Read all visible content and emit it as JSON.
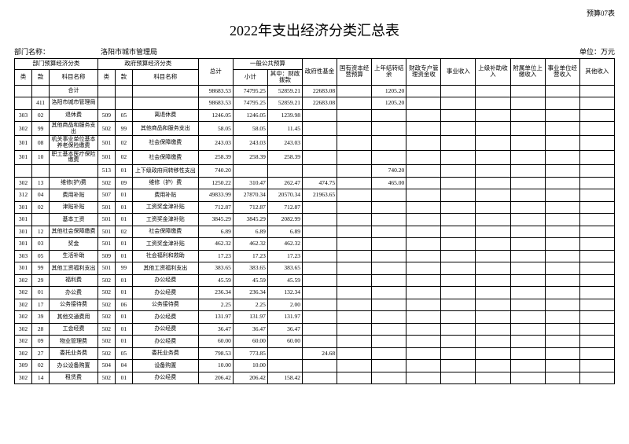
{
  "topLabel": "预算07表",
  "title": "2022年支出经济分类汇总表",
  "meta": {
    "deptLabel": "部门名称：",
    "deptName": "洛阳市城市管理局",
    "unit": "单位：万元"
  },
  "header": {
    "g1": "部门预算经济分类",
    "g2": "政府预算经济分类",
    "total": "总计",
    "pub": "一般公共预算",
    "pubSub": "小计",
    "pubFiscal": "其中：财政拨款",
    "govFund": "政府性基金",
    "stateCap": "国有资本经营预算",
    "prevBal": "上年结转结余",
    "fiscalAcct": "财政专户管理资金收",
    "bizIncome": "事业收入",
    "superSub": "上级补助收入",
    "subord": "附属单位上缴收入",
    "bizOp": "事业单位经营收入",
    "other": "其他收入",
    "lei": "类",
    "kuan": "款",
    "kemu": "科目名称"
  },
  "rows": [
    {
      "l": "",
      "k": "",
      "n": "合计",
      "l2": "",
      "k2": "",
      "n2": "",
      "v": [
        "98683.53",
        "74795.25",
        "52859.21",
        "22683.08",
        "",
        "1205.20",
        "",
        "",
        "",
        "",
        "",
        ""
      ]
    },
    {
      "l": "",
      "k": "411",
      "n": "洛阳市城市管理局",
      "l2": "",
      "k2": "",
      "n2": "",
      "v": [
        "98683.53",
        "74795.25",
        "52859.21",
        "22683.08",
        "",
        "1205.20",
        "",
        "",
        "",
        "",
        "",
        ""
      ]
    },
    {
      "l": "303",
      "k": "02",
      "n": "退休费",
      "l2": "509",
      "k2": "05",
      "n2": "离退休费",
      "v": [
        "1246.05",
        "1246.05",
        "1239.98",
        "",
        "",
        "",
        "",
        "",
        "",
        "",
        "",
        ""
      ]
    },
    {
      "l": "302",
      "k": "99",
      "n": "其他商品和服务支出",
      "l2": "502",
      "k2": "99",
      "n2": "其他商品和服务支出",
      "v": [
        "58.05",
        "58.05",
        "11.45",
        "",
        "",
        "",
        "",
        "",
        "",
        "",
        "",
        ""
      ]
    },
    {
      "l": "301",
      "k": "08",
      "n": "机关事业单位基本养老保险缴费",
      "l2": "501",
      "k2": "02",
      "n2": "社会保障缴费",
      "v": [
        "243.03",
        "243.03",
        "243.03",
        "",
        "",
        "",
        "",
        "",
        "",
        "",
        "",
        ""
      ]
    },
    {
      "l": "301",
      "k": "10",
      "n": "职工基本医疗保险缴费",
      "l2": "501",
      "k2": "02",
      "n2": "社会保障缴费",
      "v": [
        "258.39",
        "258.39",
        "258.39",
        "",
        "",
        "",
        "",
        "",
        "",
        "",
        "",
        ""
      ]
    },
    {
      "l": "",
      "k": "",
      "n": "",
      "l2": "513",
      "k2": "01",
      "n2": "上下级政府间转移性支出",
      "v": [
        "740.20",
        "",
        "",
        "",
        "",
        "740.20",
        "",
        "",
        "",
        "",
        "",
        ""
      ]
    },
    {
      "l": "302",
      "k": "13",
      "n": "维修(护)费",
      "l2": "502",
      "k2": "09",
      "n2": "维修（护）费",
      "v": [
        "1250.22",
        "310.47",
        "262.47",
        "474.75",
        "",
        "465.00",
        "",
        "",
        "",
        "",
        "",
        ""
      ]
    },
    {
      "l": "312",
      "k": "04",
      "n": "费用补贴",
      "l2": "507",
      "k2": "01",
      "n2": "费用补贴",
      "v": [
        "49833.99",
        "27870.34",
        "20570.34",
        "21963.65",
        "",
        "",
        "",
        "",
        "",
        "",
        "",
        ""
      ]
    },
    {
      "l": "301",
      "k": "02",
      "n": "津贴补贴",
      "l2": "501",
      "k2": "01",
      "n2": "工资奖金津补贴",
      "v": [
        "712.87",
        "712.87",
        "712.87",
        "",
        "",
        "",
        "",
        "",
        "",
        "",
        "",
        ""
      ]
    },
    {
      "l": "301",
      "k": "",
      "n": "基本工资",
      "l2": "501",
      "k2": "01",
      "n2": "工资奖金津补贴",
      "v": [
        "3845.29",
        "3845.29",
        "2082.99",
        "",
        "",
        "",
        "",
        "",
        "",
        "",
        "",
        ""
      ]
    },
    {
      "l": "301",
      "k": "12",
      "n": "其他社会保障缴费",
      "l2": "501",
      "k2": "02",
      "n2": "社会保障缴费",
      "v": [
        "6.89",
        "6.89",
        "6.89",
        "",
        "",
        "",
        "",
        "",
        "",
        "",
        "",
        ""
      ]
    },
    {
      "l": "301",
      "k": "03",
      "n": "奖金",
      "l2": "501",
      "k2": "01",
      "n2": "工资奖金津补贴",
      "v": [
        "462.32",
        "462.32",
        "462.32",
        "",
        "",
        "",
        "",
        "",
        "",
        "",
        "",
        ""
      ]
    },
    {
      "l": "303",
      "k": "05",
      "n": "生活补助",
      "l2": "509",
      "k2": "01",
      "n2": "社会福利和救助",
      "v": [
        "17.23",
        "17.23",
        "17.23",
        "",
        "",
        "",
        "",
        "",
        "",
        "",
        "",
        ""
      ]
    },
    {
      "l": "301",
      "k": "99",
      "n": "其他工资福利支出",
      "l2": "501",
      "k2": "99",
      "n2": "其他工资福利支出",
      "v": [
        "383.65",
        "383.65",
        "383.65",
        "",
        "",
        "",
        "",
        "",
        "",
        "",
        "",
        ""
      ]
    },
    {
      "l": "302",
      "k": "29",
      "n": "福利费",
      "l2": "502",
      "k2": "01",
      "n2": "办公经费",
      "v": [
        "45.59",
        "45.59",
        "45.59",
        "",
        "",
        "",
        "",
        "",
        "",
        "",
        "",
        ""
      ]
    },
    {
      "l": "302",
      "k": "01",
      "n": "办公费",
      "l2": "502",
      "k2": "01",
      "n2": "办公经费",
      "v": [
        "236.34",
        "236.34",
        "132.34",
        "",
        "",
        "",
        "",
        "",
        "",
        "",
        "",
        ""
      ]
    },
    {
      "l": "302",
      "k": "17",
      "n": "公务接待费",
      "l2": "502",
      "k2": "06",
      "n2": "公务接待费",
      "v": [
        "2.25",
        "2.25",
        "2.00",
        "",
        "",
        "",
        "",
        "",
        "",
        "",
        "",
        ""
      ]
    },
    {
      "l": "302",
      "k": "39",
      "n": "其他交通费用",
      "l2": "502",
      "k2": "01",
      "n2": "办公经费",
      "v": [
        "131.97",
        "131.97",
        "131.97",
        "",
        "",
        "",
        "",
        "",
        "",
        "",
        "",
        ""
      ]
    },
    {
      "l": "302",
      "k": "28",
      "n": "工会经费",
      "l2": "502",
      "k2": "01",
      "n2": "办公经费",
      "v": [
        "36.47",
        "36.47",
        "36.47",
        "",
        "",
        "",
        "",
        "",
        "",
        "",
        "",
        ""
      ]
    },
    {
      "l": "302",
      "k": "09",
      "n": "物业管理费",
      "l2": "502",
      "k2": "01",
      "n2": "办公经费",
      "v": [
        "60.00",
        "60.00",
        "60.00",
        "",
        "",
        "",
        "",
        "",
        "",
        "",
        "",
        ""
      ]
    },
    {
      "l": "302",
      "k": "27",
      "n": "委托业务费",
      "l2": "502",
      "k2": "05",
      "n2": "委托业务费",
      "v": [
        "798.53",
        "773.85",
        "",
        "24.68",
        "",
        "",
        "",
        "",
        "",
        "",
        "",
        ""
      ]
    },
    {
      "l": "309",
      "k": "02",
      "n": "办公设备购置",
      "l2": "504",
      "k2": "04",
      "n2": "设备购置",
      "v": [
        "10.00",
        "10.00",
        "",
        "",
        "",
        "",
        "",
        "",
        "",
        "",
        "",
        ""
      ]
    },
    {
      "l": "302",
      "k": "14",
      "n": "租赁费",
      "l2": "502",
      "k2": "01",
      "n2": "办公经费",
      "v": [
        "206.42",
        "206.42",
        "158.42",
        "",
        "",
        "",
        "",
        "",
        "",
        "",
        "",
        ""
      ]
    }
  ]
}
